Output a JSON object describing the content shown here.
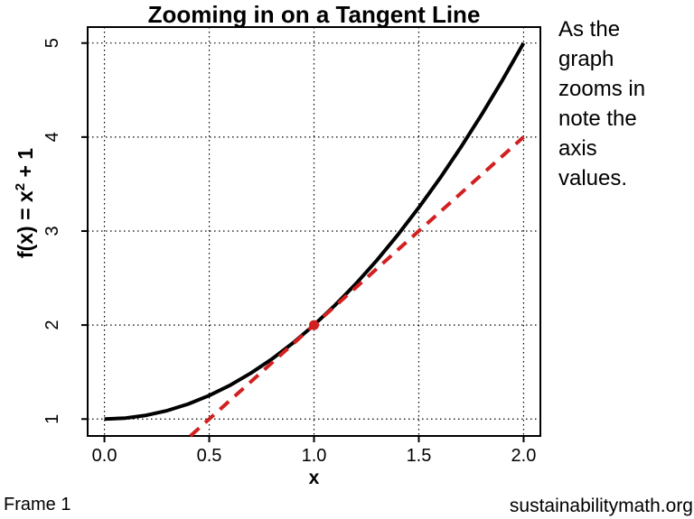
{
  "page": {
    "side_note": "As the\ngraph\nzooms in\nnote the\naxis\nvalues.",
    "frame_label": "Frame 1",
    "watermark": "sustainabilitymath.org",
    "background": "#FFFFFF"
  },
  "chart_data": {
    "type": "line",
    "title": "Zooming in on a Tangent Line",
    "xlabel": "x",
    "ylabel": "f(x) = x^2 + 1",
    "ylabel_parts": {
      "prefix": "f(x) = x",
      "sup": "2",
      "suffix": " + 1"
    },
    "xlim": [
      -0.08,
      2.08
    ],
    "ylim": [
      0.82,
      5.17
    ],
    "grid": "dotted",
    "legend": "none",
    "axis_color": "#000000",
    "x_ticks": {
      "values": [
        0,
        0.5,
        1,
        1.5,
        2
      ],
      "labels": [
        "0.0",
        "0.5",
        "1.0",
        "1.5",
        "2.0"
      ]
    },
    "y_ticks": {
      "values": [
        1,
        2,
        3,
        4,
        5
      ],
      "labels": [
        "1",
        "2",
        "3",
        "4",
        "5"
      ]
    },
    "series": [
      {
        "name": "f(x) = x^2 + 1",
        "kind": "curve",
        "color": "#000000",
        "style": "solid",
        "width": 4,
        "x": [
          0,
          0.1,
          0.2,
          0.3,
          0.4,
          0.5,
          0.6,
          0.7,
          0.8,
          0.9,
          1,
          1.1,
          1.2,
          1.3,
          1.4,
          1.5,
          1.6,
          1.7,
          1.8,
          1.9,
          2
        ],
        "y": [
          1,
          1.01,
          1.04,
          1.09,
          1.16,
          1.25,
          1.36,
          1.49,
          1.64,
          1.81,
          2,
          2.21,
          2.44,
          2.69,
          2.96,
          3.25,
          3.56,
          3.89,
          4.24,
          4.61,
          5
        ]
      },
      {
        "name": "tangent line at x = 1",
        "kind": "line",
        "color": "#D21F1F",
        "style": "dashed",
        "width": 4,
        "x": [
          0.41,
          2.0
        ],
        "y": [
          0.82,
          4.0
        ]
      }
    ],
    "tangent_point": {
      "x": 1,
      "y": 2,
      "color": "#D21F1F",
      "radius": 5.5
    }
  }
}
